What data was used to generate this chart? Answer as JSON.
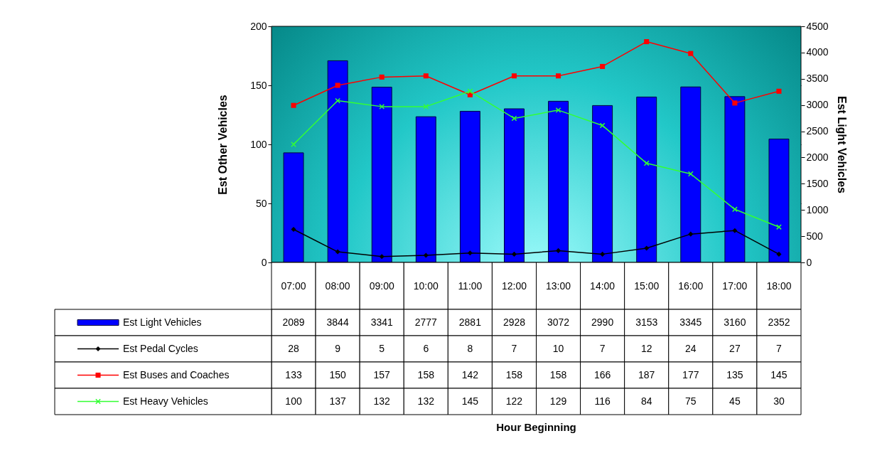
{
  "chart_data": {
    "type": "bar",
    "categories": [
      "07:00",
      "08:00",
      "09:00",
      "10:00",
      "11:00",
      "12:00",
      "13:00",
      "14:00",
      "15:00",
      "16:00",
      "17:00",
      "18:00"
    ],
    "annotations": [
      "Hour Beginning"
    ],
    "ylabel": "Est Other Vehicles",
    "y2label": "Est Light Vehicles",
    "ylim": [
      0,
      200
    ],
    "yticks": [
      0,
      50,
      100,
      150,
      200
    ],
    "y2lim": [
      0,
      4500
    ],
    "y2ticks": [
      0,
      500,
      1000,
      1500,
      2000,
      2500,
      3000,
      3500,
      4000,
      4500
    ],
    "grid": "y",
    "legend": "bottom left",
    "data_labels": true,
    "series": [
      {
        "name": "Est Light Vehicles",
        "axis": "y2",
        "color": "#0000ff",
        "values": [
          2089,
          3844,
          3341,
          2777,
          2881,
          2928,
          3072,
          2990,
          3153,
          3345,
          3160,
          2352
        ]
      },
      {
        "name": "Est Pedal Cycles",
        "type": "line",
        "marker": "diamond",
        "color": "#000000",
        "values": [
          28,
          9,
          5,
          6,
          8,
          7,
          10,
          7,
          12,
          24,
          27,
          7
        ]
      },
      {
        "name": "Est Buses and Coaches",
        "type": "line",
        "marker": "square",
        "color": "#ff0000",
        "values": [
          133,
          150,
          157,
          158,
          142,
          158,
          158,
          166,
          187,
          177,
          135,
          145
        ]
      },
      {
        "name": "Est Heavy Vehicles",
        "type": "line",
        "marker": "cross",
        "color": "#33ff33",
        "values": [
          100,
          137,
          132,
          132,
          145,
          122,
          129,
          116,
          84,
          75,
          45,
          30
        ]
      }
    ]
  }
}
